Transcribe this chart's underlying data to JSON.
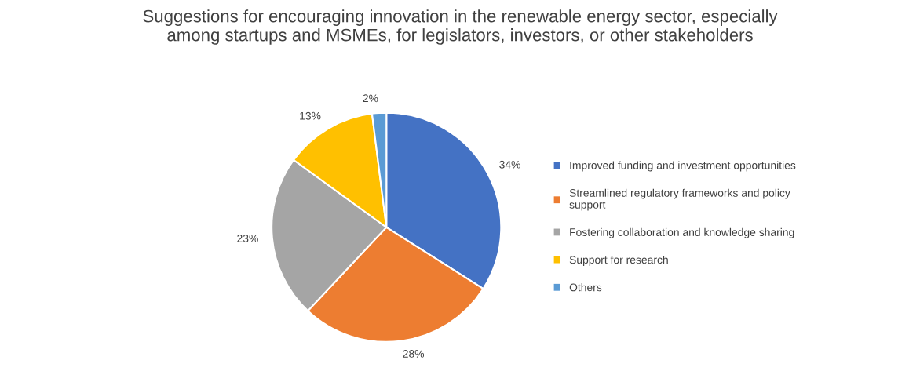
{
  "chart_data": {
    "type": "pie",
    "title": "Suggestions for encouraging innovation in the renewable energy sector, especially\namong startups and MSMEs, for legislators, investors, or other stakeholders",
    "categories": [
      "Improved funding and investment opportunities",
      "Streamlined regulatory frameworks and policy\nsupport",
      "Fostering collaboration and knowledge sharing",
      "Support for research",
      "Others"
    ],
    "values": [
      34,
      28,
      23,
      13,
      2
    ],
    "colors": [
      "#4472c4",
      "#ed7d31",
      "#a5a5a5",
      "#ffc000",
      "#5b9bd5"
    ],
    "value_labels": [
      "34%",
      "28%",
      "23%",
      "13%",
      "2%"
    ],
    "legend": "right"
  }
}
